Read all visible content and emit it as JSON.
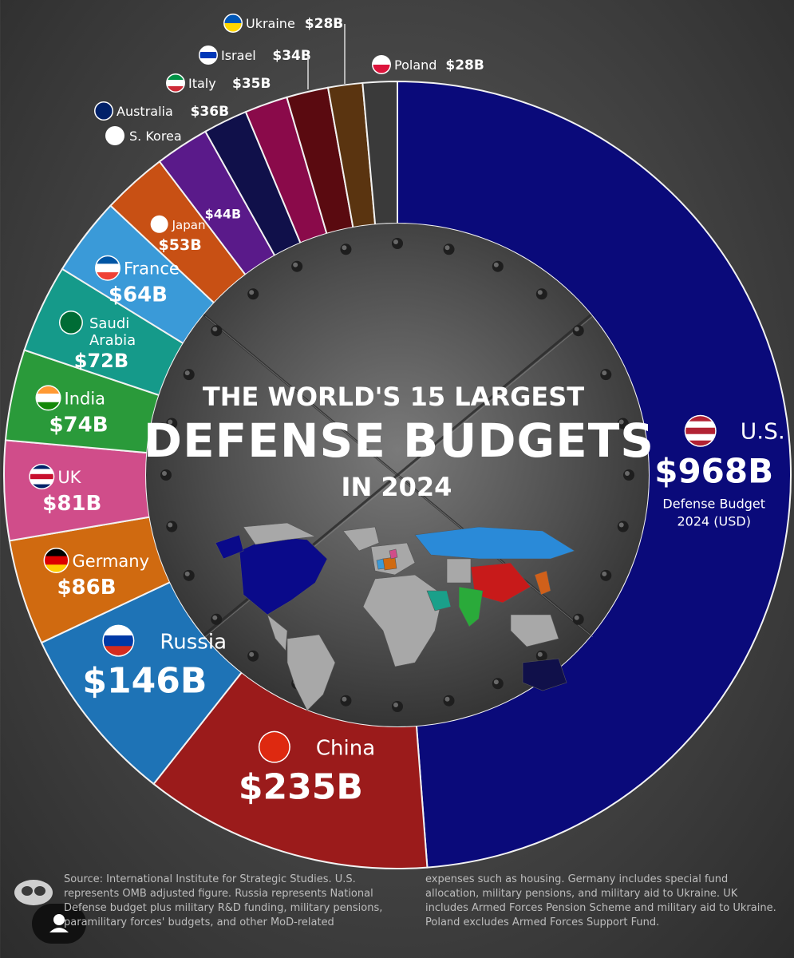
{
  "chart_data": {
    "type": "donut",
    "title_line1": "THE WORLD'S 15 LARGEST",
    "title_line2": "DEFENSE BUDGETS",
    "title_line3": "IN 2024",
    "center_subtitle": "Defense Budget\n2024 (USD)",
    "slices": [
      {
        "name": "U.S.",
        "value": 968,
        "label": "$968B",
        "color": "#0a0a7a",
        "flag": "us-flag-icon"
      },
      {
        "name": "China",
        "value": 235,
        "label": "$235B",
        "color": "#9b1b1b",
        "flag": "china-flag-icon"
      },
      {
        "name": "Russia",
        "value": 146,
        "label": "$146B",
        "color": "#1e73b6",
        "flag": "russia-flag-icon"
      },
      {
        "name": "Germany",
        "value": 86,
        "label": "$86B",
        "color": "#d06a10",
        "flag": "germany-flag-icon"
      },
      {
        "name": "UK",
        "value": 81,
        "label": "$81B",
        "color": "#d04d8a",
        "flag": "uk-flag-icon"
      },
      {
        "name": "India",
        "value": 74,
        "label": "$74B",
        "color": "#2a9a3a",
        "flag": "india-flag-icon"
      },
      {
        "name": "Saudi Arabia",
        "value": 72,
        "label": "$72B",
        "color": "#159a8a",
        "flag": "saudi-flag-icon"
      },
      {
        "name": "France",
        "value": 64,
        "label": "$64B",
        "color": "#3a9ad8",
        "flag": "france-flag-icon"
      },
      {
        "name": "Japan",
        "value": 53,
        "label": "$53B",
        "color": "#c85014",
        "flag": "japan-flag-icon"
      },
      {
        "name": "S. Korea",
        "value": 44,
        "label": "$44B",
        "color": "#5a1a8a",
        "flag": "korea-flag-icon"
      },
      {
        "name": "Australia",
        "value": 36,
        "label": "$36B",
        "color": "#10104a",
        "flag": "australia-flag-icon"
      },
      {
        "name": "Italy",
        "value": 35,
        "label": "$35B",
        "color": "#8a0a4a",
        "flag": "italy-flag-icon"
      },
      {
        "name": "Israel",
        "value": 34,
        "label": "$34B",
        "color": "#5a0a10",
        "flag": "israel-flag-icon"
      },
      {
        "name": "Ukraine",
        "value": 28,
        "label": "$28B",
        "color": "#5a3410",
        "flag": "ukraine-flag-icon"
      },
      {
        "name": "Poland",
        "value": 28,
        "label": "$28B",
        "color": "#3a3a3a",
        "flag": "poland-flag-icon"
      }
    ]
  },
  "footnotes": {
    "left": "Source: International Institute for Strategic Studies. U.S. represents OMB adjusted figure. Russia represents National Defense budget plus military R&D funding, military pensions, paramilitary  forces' budgets, and other MoD-related",
    "right": "expenses such as housing. Germany includes special fund allocation, military pensions, and military aid to Ukraine. UK includes Armed Forces Pension Scheme and military aid to Ukraine. Poland excludes Armed Forces Support Fund."
  },
  "colors": {
    "text": "#ffffff",
    "background": "#3a3a3a"
  }
}
